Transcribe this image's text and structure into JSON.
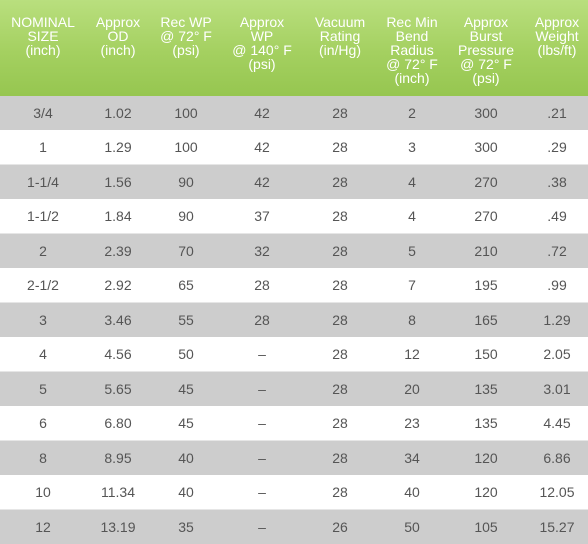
{
  "table": {
    "headers": [
      "NOMINAL\nSIZE\n(inch)",
      "Approx\nOD\n(inch)",
      "Rec WP\n@ 72° F\n(psi)",
      "Approx\nWP\n@ 140° F\n(psi)",
      "Vacuum\nRating\n(in/Hg)",
      "Rec Min\nBend\nRadius\n@ 72° F\n(inch)",
      "Approx\nBurst\nPressure\n@ 72° F\n(psi)",
      "Approx\nWeight\n(lbs/ft)"
    ],
    "rows": [
      [
        "3/4",
        "1.02",
        "100",
        "42",
        "28",
        "2",
        "300",
        ".21"
      ],
      [
        "1",
        "1.29",
        "100",
        "42",
        "28",
        "3",
        "300",
        ".29"
      ],
      [
        "1-1/4",
        "1.56",
        "90",
        "42",
        "28",
        "4",
        "270",
        ".38"
      ],
      [
        "1-1/2",
        "1.84",
        "90",
        "37",
        "28",
        "4",
        "270",
        ".49"
      ],
      [
        "2",
        "2.39",
        "70",
        "32",
        "28",
        "5",
        "210",
        ".72"
      ],
      [
        "2-1/2",
        "2.92",
        "65",
        "28",
        "28",
        "7",
        "195",
        ".99"
      ],
      [
        "3",
        "3.46",
        "55",
        "28",
        "28",
        "8",
        "165",
        "1.29"
      ],
      [
        "4",
        "4.56",
        "50",
        "–",
        "28",
        "12",
        "150",
        "2.05"
      ],
      [
        "5",
        "5.65",
        "45",
        "–",
        "28",
        "20",
        "135",
        "3.01"
      ],
      [
        "6",
        "6.80",
        "45",
        "–",
        "28",
        "23",
        "135",
        "4.45"
      ],
      [
        "8",
        "8.95",
        "40",
        "–",
        "28",
        "34",
        "120",
        "6.86"
      ],
      [
        "10",
        "11.34",
        "40",
        "–",
        "28",
        "40",
        "120",
        "12.05"
      ],
      [
        "12",
        "13.19",
        "35",
        "–",
        "26",
        "50",
        "105",
        "15.27"
      ]
    ]
  }
}
